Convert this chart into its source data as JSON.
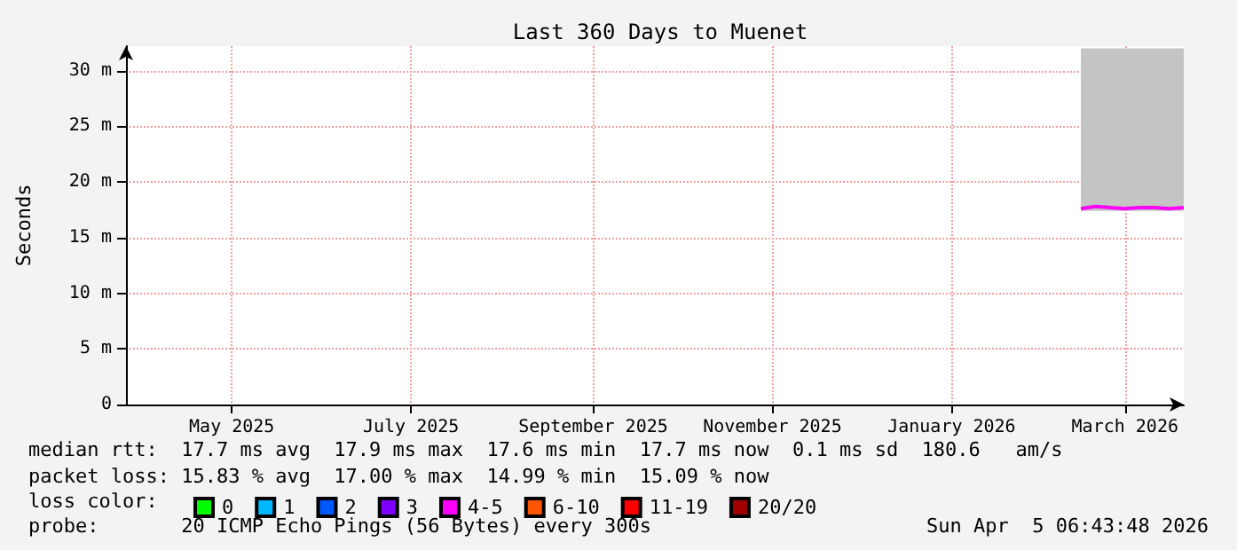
{
  "chart_data": {
    "type": "line",
    "title": "Last 360 Days to Muenet",
    "ylabel": "Seconds",
    "x": [
      "2026-03-01",
      "2026-03-06",
      "2026-03-11",
      "2026-03-16",
      "2026-03-21",
      "2026-03-26",
      "2026-03-31",
      "2026-04-05"
    ],
    "xlim": [
      "2025-04-10",
      "2026-04-05"
    ],
    "xticks": [
      {
        "value": "2025-05-16",
        "label": "May 2025"
      },
      {
        "value": "2025-07-16",
        "label": "July 2025"
      },
      {
        "value": "2025-09-16",
        "label": "September 2025"
      },
      {
        "value": "2025-11-16",
        "label": "November 2025"
      },
      {
        "value": "2026-01-16",
        "label": "January 2026"
      },
      {
        "value": "2026-03-16",
        "label": "March 2026"
      }
    ],
    "ylim": [
      0,
      32.2
    ],
    "yticks": [
      {
        "value": 0,
        "label": "0"
      },
      {
        "value": 5,
        "label": "5 m"
      },
      {
        "value": 10,
        "label": "10 m"
      },
      {
        "value": 15,
        "label": "15 m"
      },
      {
        "value": 20,
        "label": "20 m"
      },
      {
        "value": 25,
        "label": "25 m"
      },
      {
        "value": 30,
        "label": "30 m"
      }
    ],
    "legend_title": "loss color:",
    "legend": "bottom",
    "grid": true,
    "series": [
      {
        "name": "0",
        "color": "#00ff00",
        "values": [
          null,
          null,
          null,
          null,
          null,
          null,
          null,
          null
        ]
      },
      {
        "name": "1",
        "color": "#00b8ff",
        "values": [
          null,
          null,
          null,
          null,
          null,
          null,
          null,
          null
        ]
      },
      {
        "name": "2",
        "color": "#0059ff",
        "values": [
          null,
          null,
          null,
          null,
          null,
          null,
          null,
          null
        ]
      },
      {
        "name": "3",
        "color": "#7e00ff",
        "values": [
          null,
          null,
          null,
          null,
          null,
          null,
          null,
          null
        ]
      },
      {
        "name": "4-5",
        "color": "#ff00ff",
        "values": [
          17.6,
          17.8,
          17.7,
          17.6,
          17.7,
          17.7,
          17.6,
          17.7
        ],
        "lower": [
          17.4,
          17.4,
          17.4,
          17.4,
          17.4,
          17.4,
          17.4,
          17.4
        ],
        "upper": [
          32,
          32,
          32,
          32,
          32,
          32,
          32,
          32
        ]
      },
      {
        "name": "6-10",
        "color": "#ff5500",
        "values": [
          null,
          null,
          null,
          null,
          null,
          null,
          null,
          null
        ]
      },
      {
        "name": "11-19",
        "color": "#ff0000",
        "values": [
          null,
          null,
          null,
          null,
          null,
          null,
          null,
          null
        ]
      },
      {
        "name": "20/20",
        "color": "#a10000",
        "values": [
          null,
          null,
          null,
          null,
          null,
          null,
          null,
          null
        ]
      }
    ],
    "annotations": [
      "median rtt:  17.7 ms avg  17.9 ms max  17.6 ms min  17.7 ms now  0.1 ms sd  180.6   am/s",
      "packet loss: 15.83 % avg  17.00 % max  14.99 % min  15.09 % now",
      "probe:       20 ICMP Echo Pings (56 Bytes) every 300s",
      "Sun Apr  5 06:43:48 2026"
    ]
  }
}
